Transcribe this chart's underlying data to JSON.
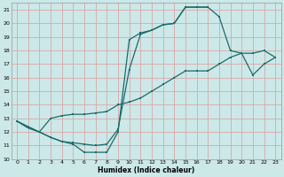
{
  "xlabel": "Humidex (Indice chaleur)",
  "xlim": [
    -0.5,
    23.5
  ],
  "ylim": [
    10,
    21.5
  ],
  "xticks": [
    0,
    1,
    2,
    3,
    4,
    5,
    6,
    7,
    8,
    9,
    10,
    11,
    12,
    13,
    14,
    15,
    16,
    17,
    18,
    19,
    20,
    21,
    22,
    23
  ],
  "yticks": [
    10,
    11,
    12,
    13,
    14,
    15,
    16,
    17,
    18,
    19,
    20,
    21
  ],
  "bg_color": "#cce8e8",
  "grid_color": "#d8a8a8",
  "line_color": "#1a6b6b",
  "line1_x": [
    0,
    1,
    2,
    3,
    4,
    5,
    6,
    7,
    8,
    9,
    10,
    11,
    12,
    13,
    14,
    15,
    16,
    17
  ],
  "line1_y": [
    12.8,
    12.3,
    12.0,
    11.6,
    11.3,
    11.1,
    10.5,
    10.5,
    10.5,
    12.0,
    18.8,
    19.3,
    19.5,
    19.9,
    20.0,
    21.2,
    21.2,
    21.2
  ],
  "line2_x": [
    0,
    2,
    3,
    4,
    5,
    6,
    7,
    8,
    9,
    10,
    11,
    12,
    13,
    14,
    15,
    16,
    17,
    18,
    19,
    20,
    21,
    22,
    23
  ],
  "line2_y": [
    12.8,
    12.0,
    13.0,
    13.2,
    13.3,
    13.3,
    13.4,
    13.5,
    14.0,
    14.2,
    14.5,
    15.0,
    15.5,
    16.0,
    16.5,
    16.5,
    16.5,
    17.0,
    17.5,
    17.8,
    17.8,
    18.0,
    17.5
  ],
  "line3_x": [
    0,
    1,
    2,
    3,
    4,
    5,
    6,
    7,
    8,
    9,
    10,
    11,
    12,
    13,
    14,
    15,
    16,
    17,
    18,
    19,
    20,
    21,
    22,
    23
  ],
  "line3_y": [
    12.8,
    12.3,
    12.0,
    11.6,
    11.3,
    11.2,
    11.1,
    11.0,
    11.1,
    12.2,
    16.6,
    19.2,
    19.5,
    19.9,
    20.0,
    21.2,
    21.2,
    21.2,
    20.5,
    18.0,
    17.8,
    16.2,
    17.0,
    17.5
  ]
}
